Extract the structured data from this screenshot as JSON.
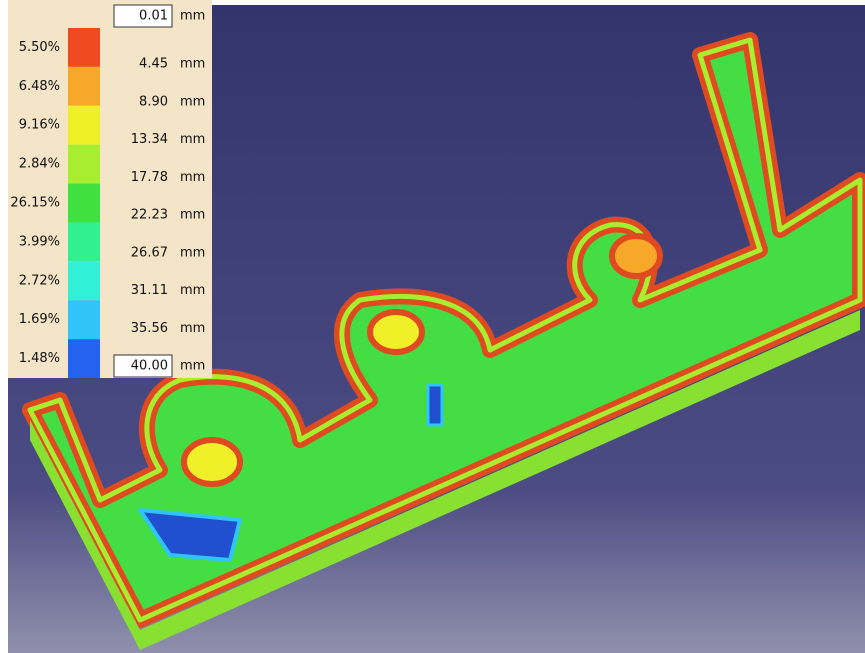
{
  "legend": {
    "percentages": [
      "5.50%",
      "6.48%",
      "9.16%",
      "2.84%",
      "26.15%",
      "3.99%",
      "2.72%",
      "1.69%",
      "1.48%"
    ],
    "swatch_colors": [
      "#f04a22",
      "#f8a828",
      "#f0f028",
      "#a8ee30",
      "#40e040",
      "#30f090",
      "#30f0d8",
      "#30c4f8",
      "#2464f0"
    ],
    "thickness_values": [
      "0.01",
      "4.45",
      "8.90",
      "13.34",
      "17.78",
      "22.23",
      "26.67",
      "31.11",
      "35.56",
      "40.00"
    ],
    "unit": "mm"
  }
}
